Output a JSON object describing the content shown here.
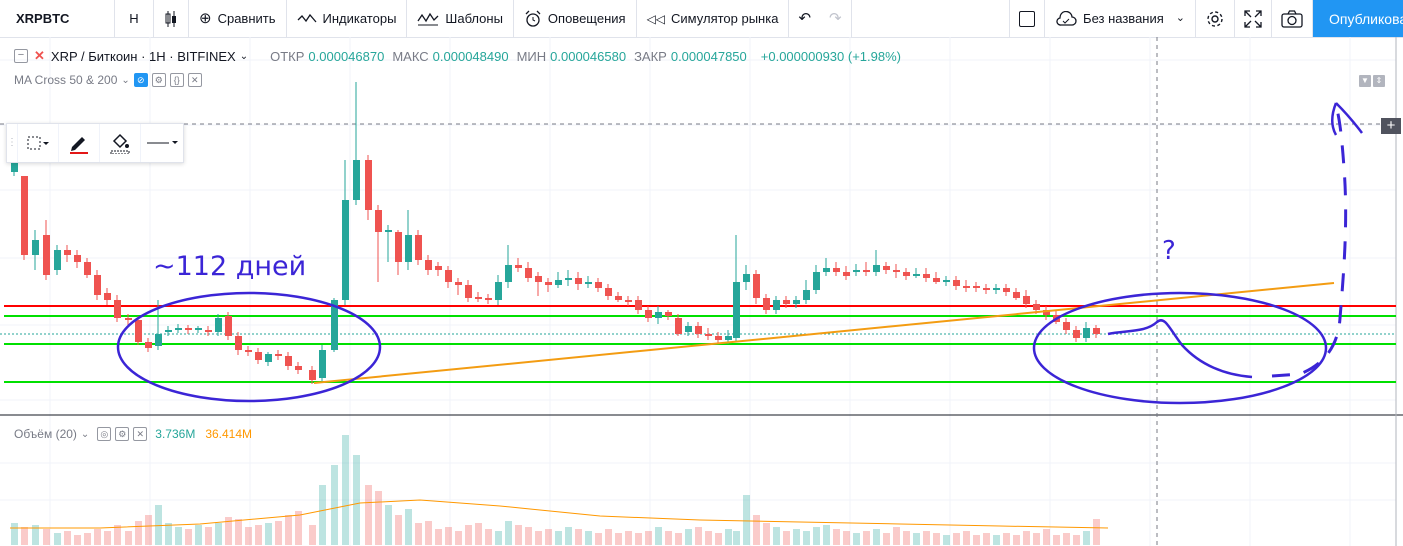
{
  "toolbar": {
    "symbol": "XRPBTC",
    "interval": "H",
    "compare": "Сравнить",
    "indicators": "Индикаторы",
    "templates": "Шаблоны",
    "alerts": "Оповещения",
    "replay": "Симулятор рынка",
    "layout_name": "Без названия",
    "publish": "Опубликовать"
  },
  "legend": {
    "title": "XRP / Биткоин · 1H · BITFINEX",
    "open_label": "ОТКР",
    "open": "0.000046870",
    "high_label": "МАКС",
    "high": "0.000048490",
    "low_label": "МИН",
    "low": "0.000046580",
    "close_label": "ЗАКР",
    "close": "0.000047850",
    "change": "+0.000000930 (+1.98%)"
  },
  "indicator": {
    "name": "MA Cross 50 & 200"
  },
  "volume": {
    "label": "Объём (20)",
    "value": "3.736M",
    "ma": "36.414M"
  },
  "annotations": {
    "days": "~112 дней",
    "question": "?"
  },
  "colors": {
    "up": "#26a69a",
    "down": "#ef5350",
    "accent": "#2196f3",
    "pen": "#3b25d6",
    "trend": "#f39c12",
    "support": "#00e000",
    "resist": "#ff0000"
  },
  "chart_data": {
    "type": "candlestick",
    "note_levels": [
      "red horizontal resistance",
      "three green horizontal supports"
    ],
    "volume_ma": "orange line"
  }
}
